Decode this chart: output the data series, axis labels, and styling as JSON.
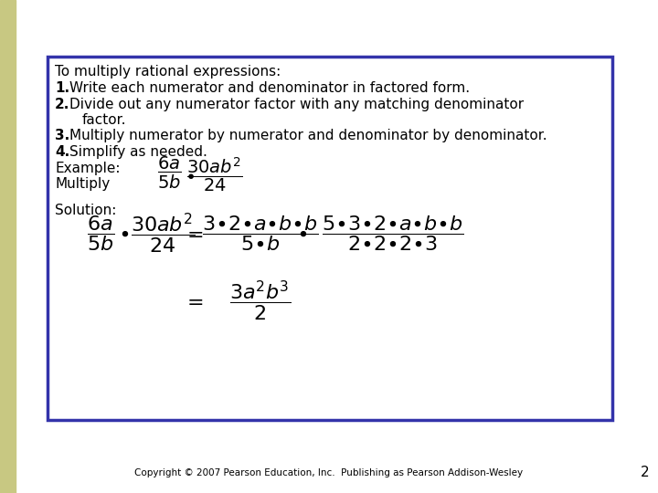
{
  "bg_color": "#ffffff",
  "left_bar_color": "#c8c882",
  "box_border_color": "#3333aa",
  "footer_text": "Copyright © 2007 Pearson Education, Inc.  Publishing as Pearson Addison-Wesley",
  "page_number": "2",
  "title_text": "To multiply rational expressions:",
  "footer_fontsize": 7.5,
  "page_num_fontsize": 11,
  "body_fontsize": 11,
  "math_fontsize": 14,
  "sol_math_fontsize": 16
}
